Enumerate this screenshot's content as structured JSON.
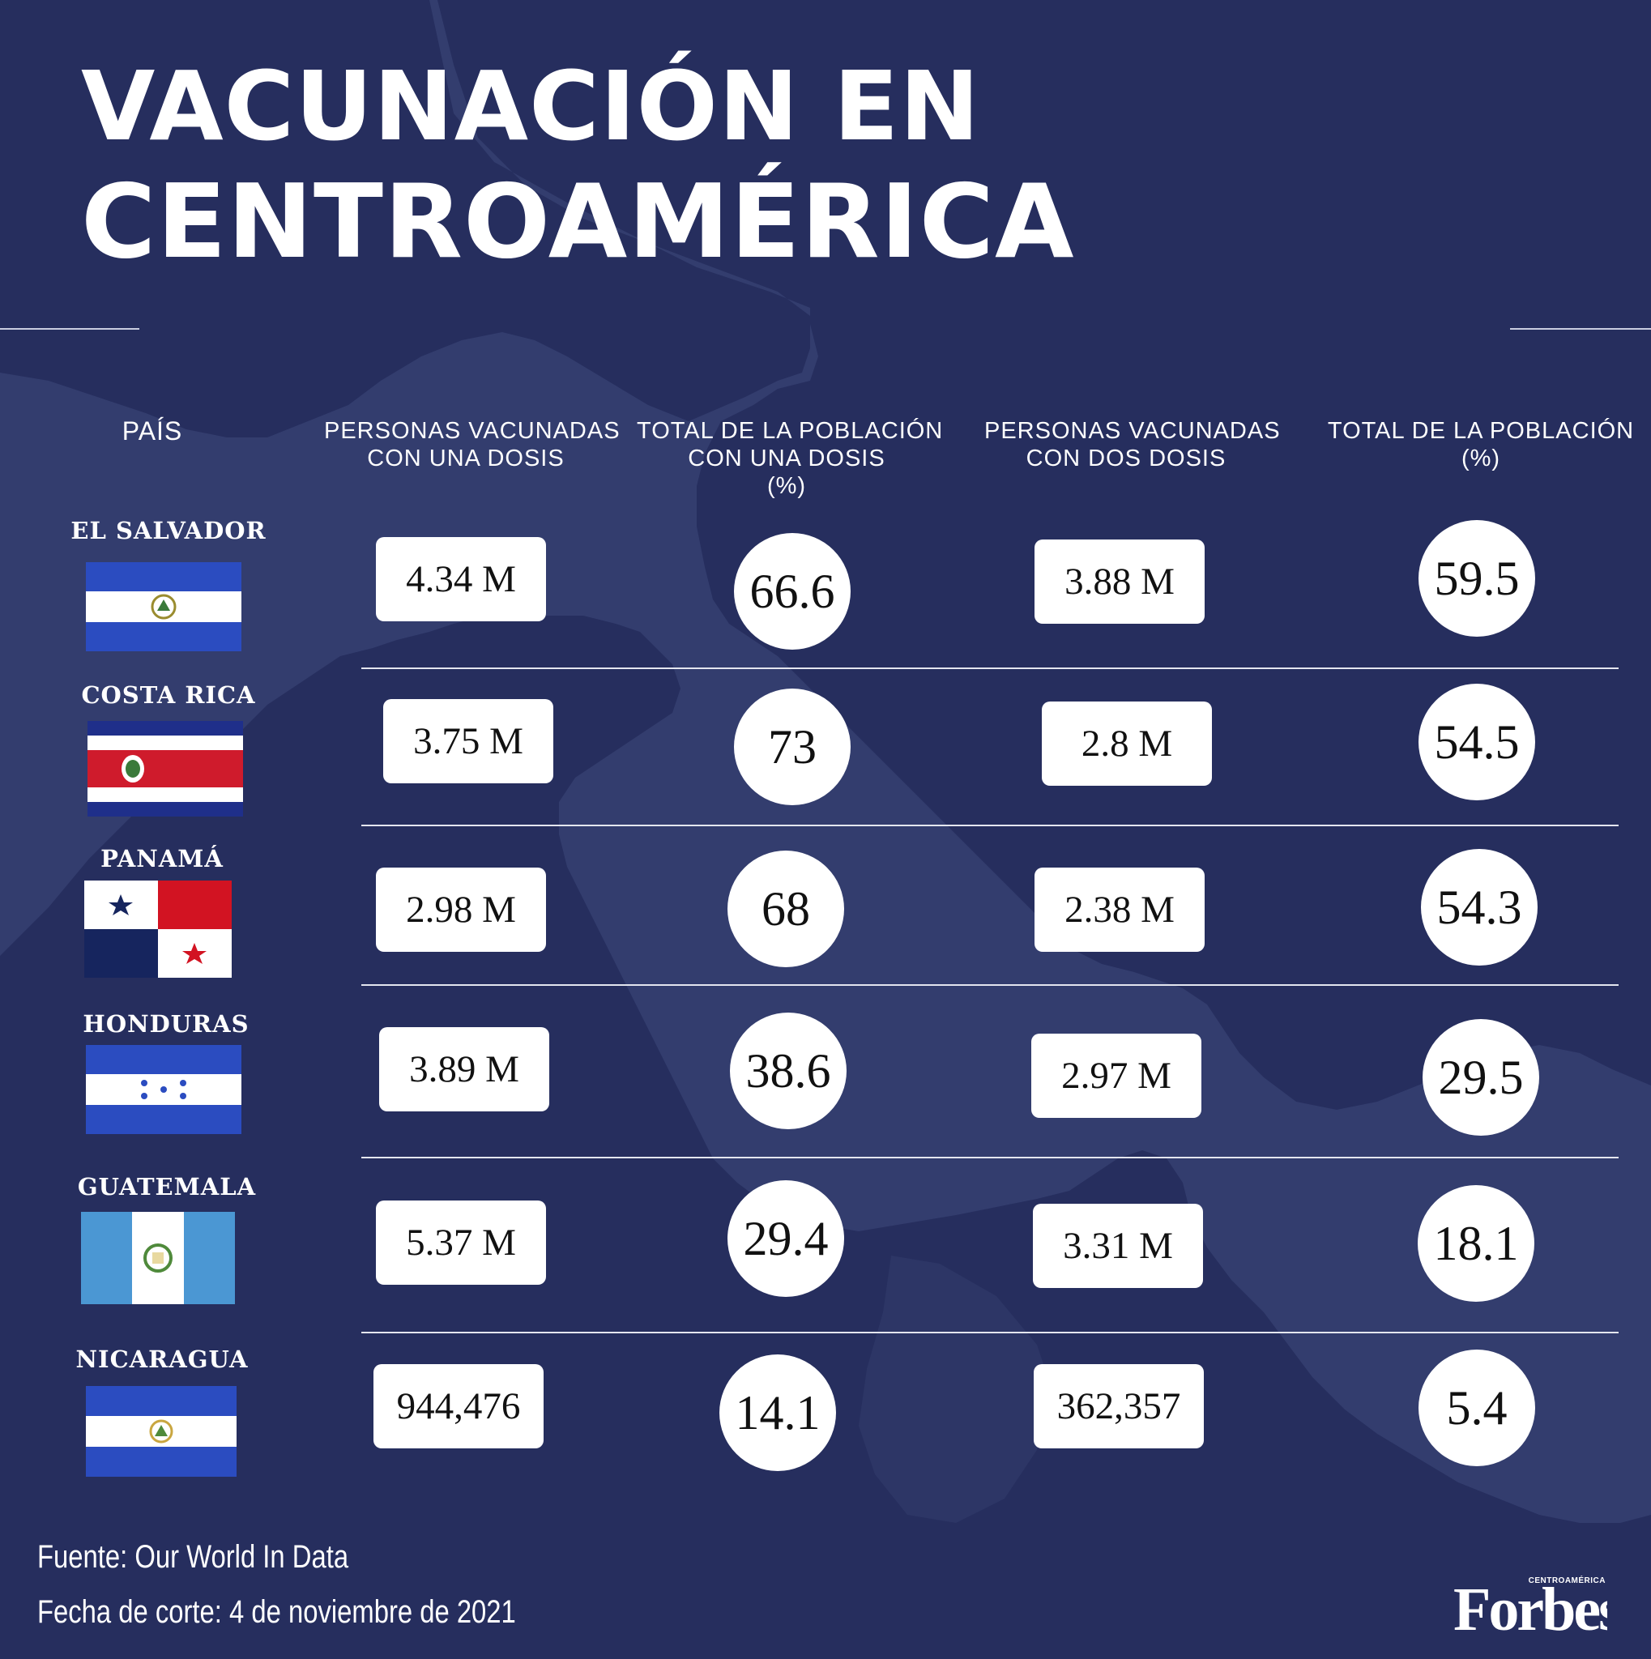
{
  "title": {
    "line1": "VACUNACIÓN EN",
    "line2": "CENTROAMÉRICA"
  },
  "headers": {
    "country": [
      "PAÍS"
    ],
    "one_dose": [
      "PERSONAS VACUNADAS",
      "CON UNA DOSIS"
    ],
    "one_dose_pct": [
      "TOTAL DE LA POBLACIÓN",
      "CON UNA DOSIS",
      "(%)"
    ],
    "two_doses": [
      "PERSONAS VACUNADAS",
      "CON DOS DOSIS"
    ],
    "two_doses_pct": [
      "TOTAL DE LA POBLACIÓN",
      "(%)"
    ]
  },
  "rows": [
    {
      "country": "EL SALVADOR",
      "flag": "el-salvador-flag",
      "one_dose": "4.34 M",
      "one_dose_pct": "66.6",
      "two_doses": "3.88 M",
      "two_doses_pct": "59.5"
    },
    {
      "country": "COSTA RICA",
      "flag": "costa-rica-flag",
      "one_dose": "3.75 M",
      "one_dose_pct": "73",
      "two_doses": "2.8 M",
      "two_doses_pct": "54.5"
    },
    {
      "country": "PANAMÁ",
      "flag": "panama-flag",
      "one_dose": "2.98 M",
      "one_dose_pct": "68",
      "two_doses": "2.38 M",
      "two_doses_pct": "54.3"
    },
    {
      "country": "HONDURAS",
      "flag": "honduras-flag",
      "one_dose": "3.89 M",
      "one_dose_pct": "38.6",
      "two_doses": "2.97 M",
      "two_doses_pct": "29.5"
    },
    {
      "country": "GUATEMALA",
      "flag": "guatemala-flag",
      "one_dose": "5.37 M",
      "one_dose_pct": "29.4",
      "two_doses": "3.31 M",
      "two_doses_pct": "18.1"
    },
    {
      "country": "NICARAGUA",
      "flag": "nicaragua-flag",
      "one_dose": "944,476",
      "one_dose_pct": "14.1",
      "two_doses": "362,357",
      "two_doses_pct": "5.4"
    }
  ],
  "footer": {
    "source": "Fuente: Our World In Data",
    "date": "Fecha de corte: 4 de noviembre de 2021"
  },
  "brand": {
    "name": "Forbes",
    "edition": "CENTROAMÉRICA"
  },
  "colors": {
    "background": "#262e5e",
    "map": "#333d6e",
    "text": "#ffffff",
    "cell": "#ffffff"
  }
}
